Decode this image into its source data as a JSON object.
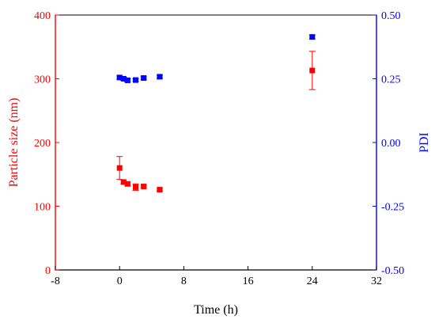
{
  "chart_data": {
    "type": "scatter",
    "xlabel": "Time (h)",
    "ylabel_left": "Particle size (nm)",
    "ylabel_right": "PDI",
    "xlim": [
      -8,
      32
    ],
    "ylim_left": [
      0,
      400
    ],
    "ylim_right": [
      -0.5,
      0.5
    ],
    "x_ticks": [
      -8,
      0,
      8,
      16,
      24,
      32
    ],
    "x_tick_labels": [
      "-8",
      "0",
      "8",
      "16",
      "24",
      "32"
    ],
    "y_left_ticks": [
      0,
      100,
      200,
      300,
      400
    ],
    "y_left_tick_labels": [
      "0",
      "100",
      "200",
      "300",
      "400"
    ],
    "y_right_ticks": [
      -0.5,
      -0.25,
      0.0,
      0.25,
      0.5
    ],
    "y_right_tick_labels": [
      "-0.50",
      "-0.25",
      "0.00",
      "0.25",
      "0.50"
    ],
    "grid": false,
    "colors": {
      "left_axis": "#ff0000",
      "right_axis": "#0000ff",
      "frame": "#000000"
    },
    "series": [
      {
        "axis": "left",
        "color": "#ff0000",
        "marker": "square",
        "points": [
          {
            "x": 0,
            "y": 160,
            "err": 18
          },
          {
            "x": 0.5,
            "y": 138,
            "err": 3
          },
          {
            "x": 1,
            "y": 135,
            "err": 3
          },
          {
            "x": 2,
            "y": 130,
            "err": 5
          },
          {
            "x": 3,
            "y": 131,
            "err": 2
          },
          {
            "x": 5,
            "y": 126,
            "err": 2
          },
          {
            "x": 24,
            "y": 313,
            "err": 30
          }
        ]
      },
      {
        "axis": "right",
        "color": "#0000ff",
        "marker": "square",
        "points": [
          {
            "x": 0,
            "y": 0.255,
            "err": 0.006
          },
          {
            "x": 0.5,
            "y": 0.25,
            "err": 0.006
          },
          {
            "x": 1,
            "y": 0.244,
            "err": 0.006
          },
          {
            "x": 2,
            "y": 0.245,
            "err": 0.005
          },
          {
            "x": 3,
            "y": 0.253,
            "err": 0.005
          },
          {
            "x": 5,
            "y": 0.258,
            "err": 0.006
          },
          {
            "x": 24,
            "y": 0.414,
            "err": 0.008
          }
        ]
      }
    ]
  }
}
